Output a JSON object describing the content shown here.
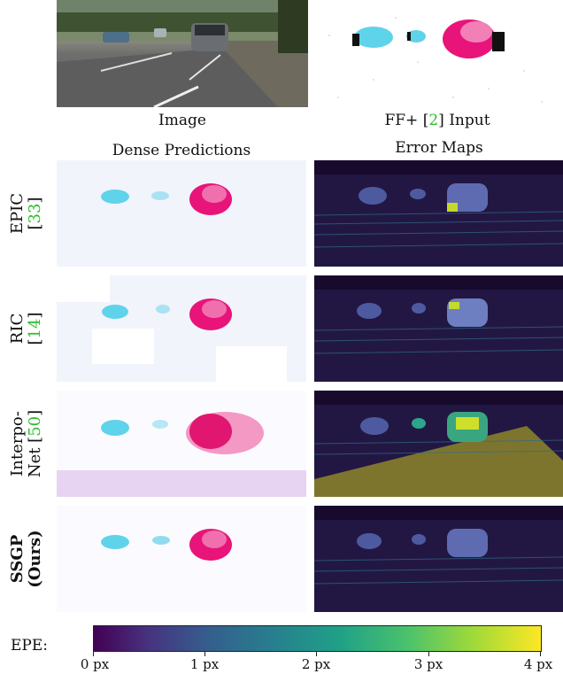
{
  "top_captions": {
    "image": "Image",
    "input_prefix": "FF+ [",
    "input_cite": "2",
    "input_suffix": "] Input"
  },
  "column_headers": {
    "dense": "Dense Predictions",
    "error": "Error Maps"
  },
  "rows": [
    {
      "line1": "EPIC",
      "line2_prefix": "[",
      "line2_cite": "33",
      "line2_suffix": "]"
    },
    {
      "line1": "RIC",
      "line2_prefix": "[",
      "line2_cite": "14",
      "line2_suffix": "]"
    },
    {
      "line1": "Interpo-",
      "line2_prefix": "Net [",
      "line2_cite": "50",
      "line2_suffix": "]"
    },
    {
      "line1": "SSGP",
      "line2_prefix": "(Ours)",
      "line2_cite": "",
      "line2_suffix": ""
    }
  ],
  "colorbar": {
    "label": "EPE:",
    "ticks": [
      "0 px",
      "1 px",
      "2 px",
      "3 px",
      "4 px"
    ],
    "range": [
      0,
      4
    ],
    "colormap": "viridis"
  },
  "colors": {
    "cite": "#2dbd2d",
    "error_background": "#170a2c",
    "flow_magenta": "#e8147a",
    "flow_cyan": "#5fd3ea"
  }
}
